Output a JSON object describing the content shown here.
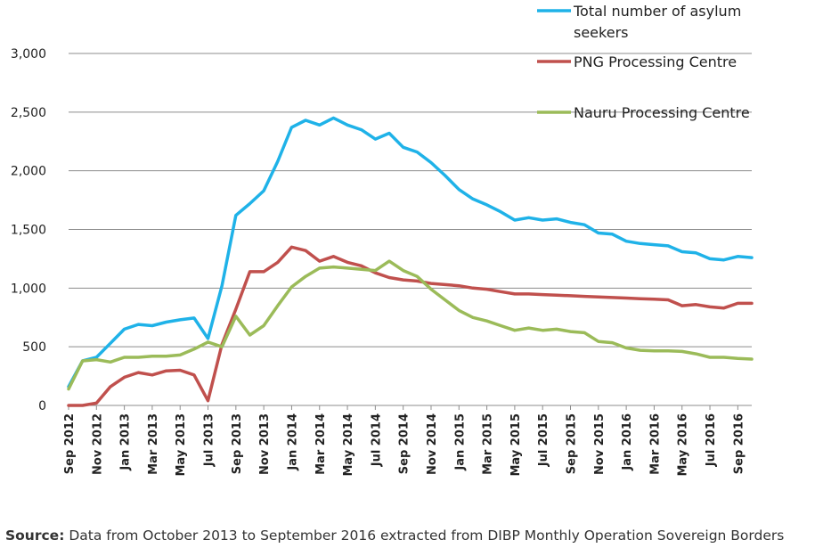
{
  "chart_data": {
    "type": "line",
    "ylim": [
      0,
      3000
    ],
    "yticks": [
      "0",
      "500",
      "1,000",
      "1,500",
      "2,000",
      "2,500",
      "3,000"
    ],
    "ytick_values": [
      0,
      500,
      1000,
      1500,
      2000,
      2500,
      3000
    ],
    "x": [
      "Sep 2012",
      "Oct 2012",
      "Nov 2012",
      "Dec 2012",
      "Jan 2013",
      "Feb 2013",
      "Mar 2013",
      "Apr 2013",
      "May 2013",
      "Jun 2013",
      "Jul 2013",
      "Aug 2013",
      "Sep 2013",
      "Oct 2013",
      "Nov 2013",
      "Dec 2013",
      "Jan 2014",
      "Feb 2014",
      "Mar 2014",
      "Apr 2014",
      "May 2014",
      "Jun 2014",
      "Jul 2014",
      "Aug 2014",
      "Sep 2014",
      "Oct 2014",
      "Nov 2014",
      "Dec 2014",
      "Jan 2015",
      "Feb 2015",
      "Mar 2015",
      "Apr 2015",
      "May 2015",
      "Jun 2015",
      "Jul 2015",
      "Aug 2015",
      "Sep 2015",
      "Oct 2015",
      "Nov 2015",
      "Dec 2015",
      "Jan 2016",
      "Feb 2016",
      "Mar 2016",
      "Apr 2016",
      "May 2016",
      "Jun 2016",
      "Jul 2016",
      "Aug 2016",
      "Sep 2016",
      "Oct 2016"
    ],
    "xtick_labels": [
      "Sep 2012",
      "Nov 2012",
      "Jan 2013",
      "Mar 2013",
      "May 2013",
      "Jul 2013",
      "Sep 2013",
      "Nov 2013",
      "Jan 2014",
      "Mar 2014",
      "May 2014",
      "Jul 2014",
      "Sep 2014",
      "Nov 2014",
      "Jan 2015",
      "Mar 2015",
      "May 2015",
      "Jul 2015",
      "Sep 2015",
      "Nov 2015",
      "Jan 2016",
      "Mar 2016",
      "May 2016",
      "Jul 2016",
      "Sep 2016"
    ],
    "grid": "horizontal",
    "legend_position": "top-right",
    "series": [
      {
        "name": "Total number of asylum seekers",
        "color": "#1fb2e8",
        "values": [
          160,
          380,
          410,
          530,
          650,
          690,
          680,
          710,
          730,
          745,
          570,
          1020,
          1620,
          1720,
          1830,
          2080,
          2370,
          2430,
          2390,
          2450,
          2390,
          2350,
          2270,
          2320,
          2200,
          2160,
          2070,
          1960,
          1840,
          1760,
          1710,
          1650,
          1580,
          1600,
          1580,
          1590,
          1560,
          1540,
          1470,
          1460,
          1400,
          1380,
          1370,
          1360,
          1310,
          1300,
          1250,
          1240,
          1270,
          1260
        ]
      },
      {
        "name": "PNG Processing Centre",
        "color": "#c0504d",
        "values": [
          0,
          0,
          20,
          160,
          240,
          280,
          260,
          295,
          300,
          260,
          40,
          520,
          820,
          1140,
          1140,
          1220,
          1350,
          1320,
          1230,
          1270,
          1220,
          1190,
          1130,
          1090,
          1070,
          1060,
          1040,
          1030,
          1020,
          1000,
          990,
          970,
          950,
          950,
          945,
          940,
          935,
          930,
          925,
          920,
          915,
          910,
          905,
          900,
          850,
          860,
          840,
          830,
          870,
          870
        ]
      },
      {
        "name": "Nauru Processing Centre",
        "color": "#9bbb59",
        "values": [
          140,
          380,
          390,
          370,
          410,
          410,
          420,
          420,
          430,
          480,
          540,
          500,
          760,
          600,
          680,
          850,
          1010,
          1100,
          1170,
          1180,
          1170,
          1160,
          1150,
          1230,
          1150,
          1100,
          990,
          900,
          810,
          750,
          720,
          680,
          640,
          660,
          640,
          650,
          630,
          620,
          545,
          535,
          490,
          470,
          465,
          465,
          460,
          440,
          410,
          410,
          400,
          395
        ]
      }
    ]
  },
  "source": {
    "label": "Source:",
    "text": " Data from October 2013 to September 2016 extracted from DIBP Monthly Operation Sovereign Borders"
  }
}
